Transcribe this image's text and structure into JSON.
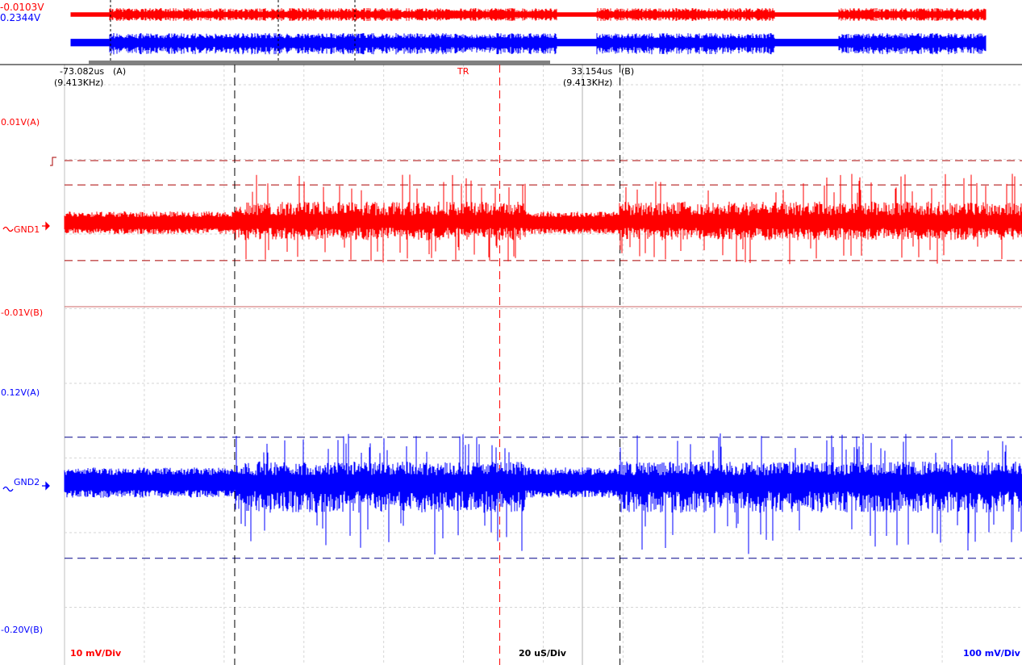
{
  "readouts": {
    "ch1_value": "-0.0103V",
    "ch2_value": "0.2344V"
  },
  "cursors": {
    "a_time": "-73.082us",
    "a_freq": "(9.413KHz)",
    "a_tag": "(A)",
    "b_time": "33.154us",
    "b_freq": "(9.413KHz)",
    "b_tag": "(B)",
    "trigger_tag": "TR"
  },
  "ch1": {
    "level_a": "0.01V(A)",
    "level_b": "-0.01V(B)",
    "gnd_label": "GND1",
    "scale": "10 mV/Div",
    "color": "#ff0000",
    "trigger_icon": "rising-edge-trigger-icon"
  },
  "ch2": {
    "level_a": "0.12V(A)",
    "level_b": "-0.20V(B)",
    "gnd_label": "GND2",
    "scale": "100 mV/Div",
    "color": "#0000ff"
  },
  "timebase": {
    "scale": "20 uS/Div"
  },
  "chart_data": {
    "type": "line",
    "x_unit": "us",
    "grid": true,
    "xlim": [
      -120,
      144
    ],
    "cursor_a_us": -73.082,
    "cursor_b_us": 33.154,
    "trigger_us": 0,
    "series": [
      {
        "name": "GND1",
        "color": "#ff0000",
        "volts_per_div": 0.01,
        "cursor_levels_v": [
          0.01,
          -0.01
        ],
        "bursts_us": [
          [
            -73,
            7
          ],
          [
            33,
            144
          ]
        ],
        "burst_peak_v": [
          0.013,
          -0.011
        ],
        "quiet_amplitude_v": 0.003
      },
      {
        "name": "GND2",
        "color": "#0000ff",
        "volts_per_div": 0.1,
        "cursor_levels_v": [
          0.12,
          -0.2
        ],
        "bursts_us": [
          [
            -73,
            7
          ],
          [
            33,
            144
          ]
        ],
        "burst_peak_v": [
          0.13,
          -0.19
        ],
        "quiet_amplitude_v": 0.04
      }
    ]
  }
}
